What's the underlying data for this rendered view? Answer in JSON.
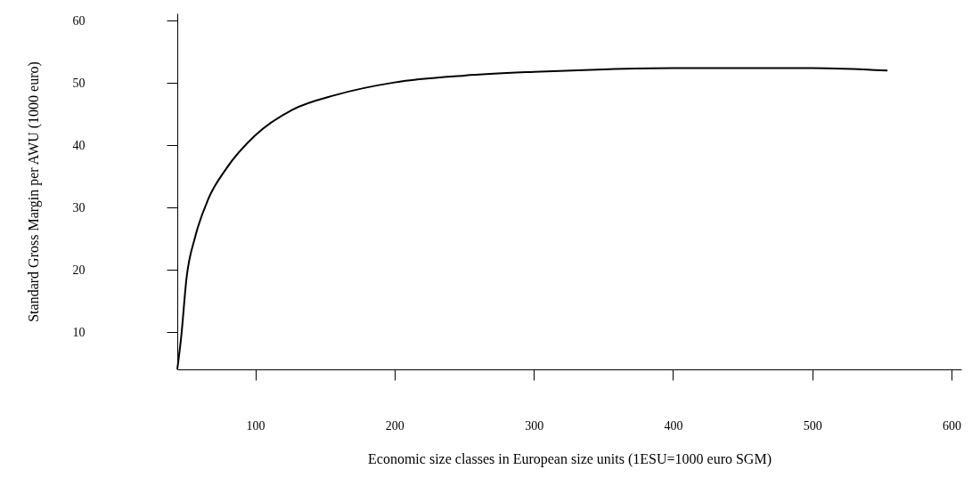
{
  "chart_data": {
    "type": "line",
    "xlabel": "Economic size classes in European size units (1ESU=1000 euro SGM)",
    "ylabel": "Standard Gross Margin per AWU (1000 euro)",
    "x": [
      44,
      46.8,
      50.6,
      57,
      66.5,
      79,
      100,
      126.6,
      158,
      200,
      250,
      300,
      350,
      400,
      450,
      500,
      554
    ],
    "series": [
      {
        "color": "#000000",
        "values": [
          4,
          9.2,
          18.6,
          25.4,
          31.5,
          36.2,
          41.6,
          45.7,
          48.1,
          50.1,
          51.2,
          51.8,
          52.2,
          52.4,
          52.4,
          52.4,
          52.0
        ]
      }
    ],
    "xlim": [
      44,
      607
    ],
    "xticks": [
      100,
      200,
      300,
      400,
      500,
      600
    ],
    "ylim": [
      4,
      61.2
    ],
    "yticks": [
      10,
      20,
      30,
      40,
      50,
      60
    ],
    "grid": false,
    "marker": "none",
    "line_style": "solid"
  }
}
